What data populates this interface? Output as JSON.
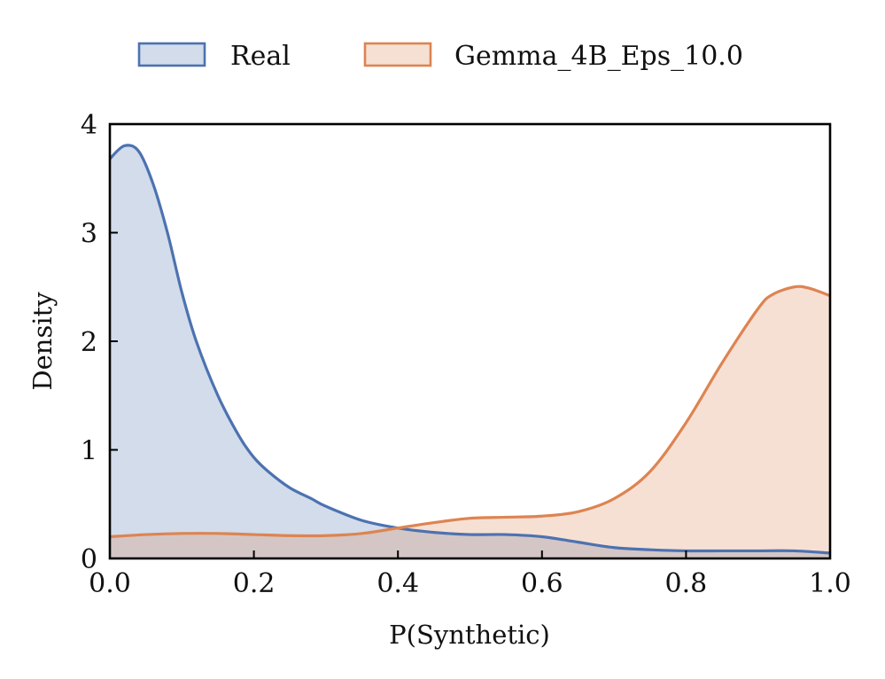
{
  "chart_data": {
    "type": "area",
    "title": "",
    "xlabel": "P(Synthetic)",
    "ylabel": "Density",
    "xlim": [
      0.0,
      1.0
    ],
    "ylim": [
      0,
      4
    ],
    "xticks": [
      0.0,
      0.2,
      0.4,
      0.6,
      0.8,
      1.0
    ],
    "xtick_labels": [
      "0.0",
      "0.2",
      "0.4",
      "0.6",
      "0.8",
      "1.0"
    ],
    "yticks": [
      0,
      1,
      2,
      3,
      4
    ],
    "ytick_labels": [
      "0",
      "1",
      "2",
      "3",
      "4"
    ],
    "grid": false,
    "legend_position": "top-center",
    "series": [
      {
        "name": "Real",
        "color": "#4c72b0",
        "fill": "#d0daea",
        "x": [
          0.0,
          0.02,
          0.04,
          0.06,
          0.08,
          0.1,
          0.12,
          0.15,
          0.18,
          0.2,
          0.22,
          0.25,
          0.28,
          0.3,
          0.35,
          0.4,
          0.45,
          0.5,
          0.55,
          0.6,
          0.65,
          0.7,
          0.75,
          0.8,
          0.85,
          0.9,
          0.95,
          1.0
        ],
        "y": [
          3.68,
          3.8,
          3.75,
          3.45,
          3.0,
          2.45,
          2.0,
          1.5,
          1.12,
          0.93,
          0.8,
          0.65,
          0.55,
          0.48,
          0.35,
          0.28,
          0.24,
          0.22,
          0.22,
          0.2,
          0.15,
          0.1,
          0.08,
          0.07,
          0.07,
          0.07,
          0.07,
          0.05
        ]
      },
      {
        "name": "Gemma_4B_Eps_10.0",
        "color": "#dd8452",
        "fill": "#f7dccf",
        "x": [
          0.0,
          0.05,
          0.1,
          0.15,
          0.2,
          0.25,
          0.3,
          0.35,
          0.4,
          0.45,
          0.5,
          0.55,
          0.6,
          0.65,
          0.7,
          0.75,
          0.8,
          0.85,
          0.9,
          0.92,
          0.95,
          0.97,
          1.0
        ],
        "y": [
          0.2,
          0.22,
          0.23,
          0.23,
          0.22,
          0.21,
          0.21,
          0.23,
          0.28,
          0.33,
          0.37,
          0.38,
          0.39,
          0.43,
          0.55,
          0.8,
          1.25,
          1.8,
          2.3,
          2.43,
          2.5,
          2.49,
          2.42
        ]
      }
    ]
  }
}
